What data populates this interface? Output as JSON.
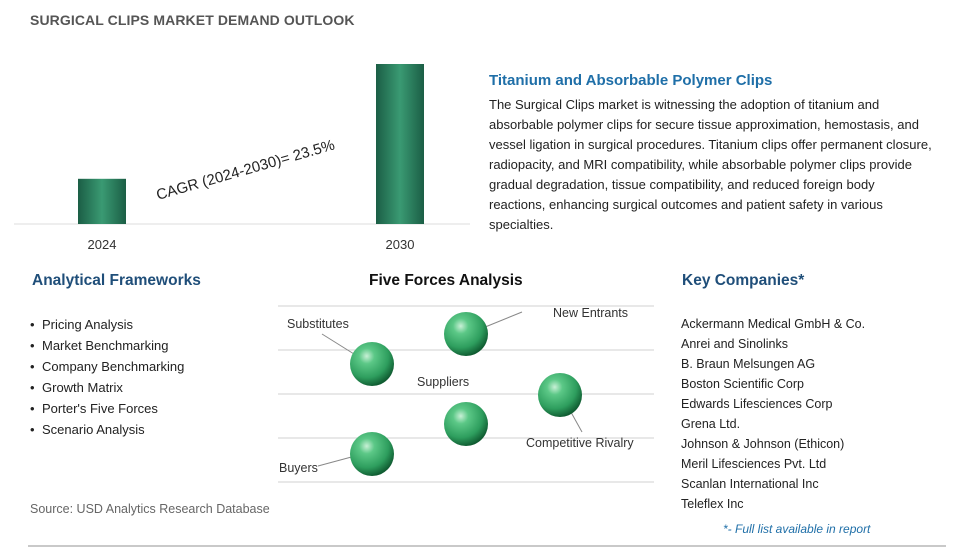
{
  "header": {
    "title": "SURGICAL CLIPS MARKET DEMAND OUTLOOK"
  },
  "chart_data": {
    "type": "bar",
    "categories": [
      "2024",
      "2030"
    ],
    "values": [
      1.0,
      3.54
    ],
    "annotation": "CAGR (2024-2030)=  23.5%",
    "bar_color": "#2e7d5b",
    "bar_gradient_colors": [
      "#1b5e45",
      "#3a9a73",
      "#1b5e45"
    ]
  },
  "description": {
    "title": "Titanium and Absorbable Polymer Clips",
    "body": "The Surgical Clips market is witnessing the adoption of titanium and absorbable polymer clips for secure tissue approximation, hemostasis, and vessel ligation in surgical procedures. Titanium clips offer permanent closure, radiopacity, and MRI compatibility, while absorbable polymer clips provide gradual degradation, tissue compatibility, and reduced foreign body reactions, enhancing surgical outcomes and patient safety in various specialties."
  },
  "frameworks": {
    "heading": "Analytical Frameworks",
    "items": [
      "Pricing Analysis",
      "Market Benchmarking",
      "Company Benchmarking",
      "Growth Matrix",
      "Porter's Five Forces",
      "Scenario Analysis"
    ]
  },
  "five_forces": {
    "heading": "Five Forces Analysis",
    "labels": {
      "substitutes": "Substitutes",
      "new_entrants": "New Entrants",
      "suppliers": "Suppliers",
      "competitive_rivalry": "Competitive Rivalry",
      "buyers": "Buyers"
    },
    "sphere_color": "#2e9e5e"
  },
  "companies": {
    "heading": "Key Companies*",
    "items": [
      "Ackermann Medical GmbH & Co.",
      "Anrei and Sinolinks",
      "B. Braun Melsungen AG",
      "Boston Scientific Corp",
      "Edwards Lifesciences Corp",
      "Grena Ltd.",
      "Johnson & Johnson (Ethicon)",
      "Meril Lifesciences Pvt. Ltd",
      "Scanlan International Inc",
      "Teleflex Inc"
    ],
    "note": "*- Full list available in report"
  },
  "source": "Source: USD Analytics Research Database"
}
